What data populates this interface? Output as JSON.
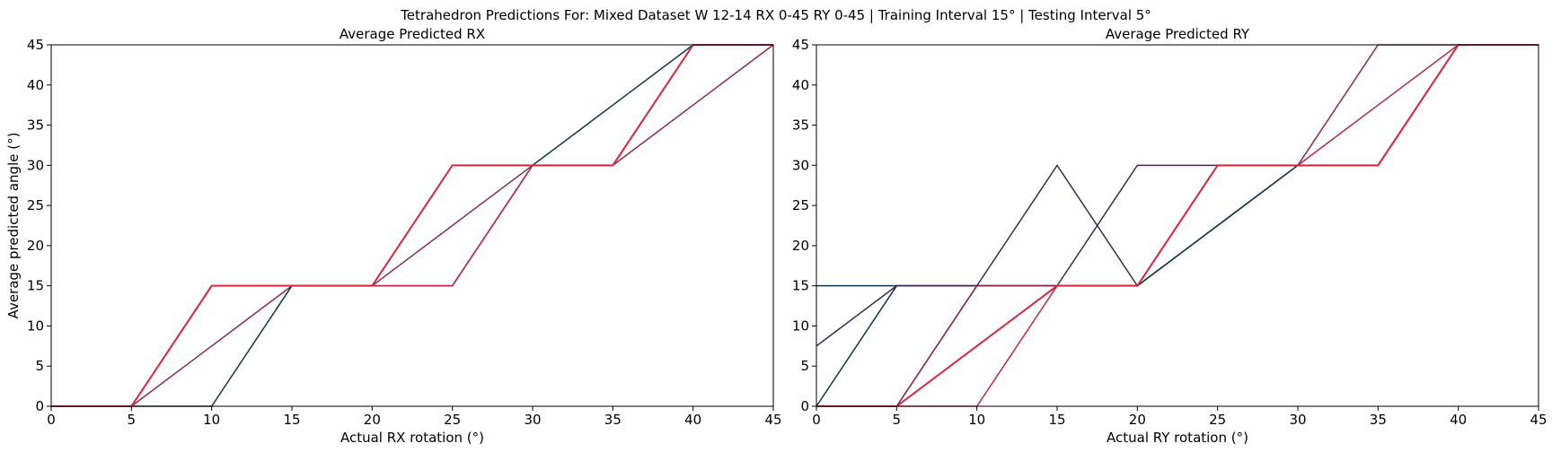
{
  "figure": {
    "suptitle": "Tetrahedron Predictions For: Mixed Dataset W 12-14 RX 0-45 RY 0-45 | Training Interval 15° | Testing Interval 5°"
  },
  "colors": {
    "navy": "#0c3350",
    "plum": "#3a2a4e",
    "wine": "#8b2a4e",
    "crimson": "#b8274a",
    "red": "#d8283f"
  },
  "chart_data": [
    {
      "type": "line",
      "title": "Average Predicted RX",
      "xlabel": "Actual RX rotation (°)",
      "ylabel": "Average predicted angle (°)",
      "xlim": [
        0,
        45
      ],
      "ylim": [
        0,
        45
      ],
      "xticks": [
        0,
        5,
        10,
        15,
        20,
        25,
        30,
        35,
        40,
        45
      ],
      "yticks": [
        0,
        5,
        10,
        15,
        20,
        25,
        30,
        35,
        40,
        45
      ],
      "grid": false,
      "series": [
        {
          "color": "#0c3350",
          "x": [
            0,
            5,
            10,
            15,
            20,
            25,
            30,
            35,
            40,
            45
          ],
          "y": [
            0,
            0,
            0,
            15,
            15,
            15,
            30,
            37.5,
            45,
            45
          ]
        },
        {
          "color": "#8b2a4e",
          "x": [
            0,
            5,
            10,
            15,
            20,
            25,
            30,
            35,
            40,
            45
          ],
          "y": [
            0,
            0,
            7.5,
            15,
            15,
            22.5,
            30,
            30,
            37.5,
            45
          ]
        },
        {
          "color": "#b8274a",
          "x": [
            0,
            5,
            10,
            15,
            20,
            25,
            30,
            35,
            40,
            45
          ],
          "y": [
            0,
            0,
            15,
            15,
            15,
            15,
            30,
            30,
            45,
            45
          ]
        },
        {
          "color": "#d8283f",
          "x": [
            0,
            5,
            10,
            15,
            20,
            25,
            30,
            35,
            40,
            45
          ],
          "y": [
            0,
            0,
            15,
            15,
            15,
            30,
            30,
            30,
            45,
            45
          ]
        }
      ]
    },
    {
      "type": "line",
      "title": "Average Predicted RY",
      "xlabel": "Actual RY rotation (°)",
      "ylabel": "",
      "xlim": [
        0,
        45
      ],
      "ylim": [
        0,
        45
      ],
      "xticks": [
        0,
        5,
        10,
        15,
        20,
        25,
        30,
        35,
        40,
        45
      ],
      "yticks": [
        0,
        5,
        10,
        15,
        20,
        25,
        30,
        35,
        40,
        45
      ],
      "grid": false,
      "series": [
        {
          "color": "#0c3350",
          "x": [
            0,
            5,
            10,
            15,
            20,
            25,
            30,
            35,
            40,
            45
          ],
          "y": [
            15,
            15,
            15,
            15,
            15,
            22.5,
            30,
            30,
            45,
            45
          ]
        },
        {
          "color": "#0c3350",
          "x": [
            0,
            5,
            10,
            15,
            20,
            25,
            30,
            35,
            40,
            45
          ],
          "y": [
            0,
            15,
            15,
            15,
            15,
            22.5,
            30,
            30,
            45,
            45
          ]
        },
        {
          "color": "#3a2a4e",
          "x": [
            0,
            5,
            10,
            15,
            20,
            25,
            30,
            35,
            40,
            45
          ],
          "y": [
            7.5,
            15,
            15,
            30,
            15,
            30,
            30,
            30,
            45,
            45
          ]
        },
        {
          "color": "#3a2a4e",
          "x": [
            0,
            5,
            10,
            15,
            20,
            25,
            30,
            35,
            40,
            45
          ],
          "y": [
            0,
            0,
            15,
            15,
            30,
            30,
            30,
            30,
            45,
            45
          ]
        },
        {
          "color": "#8b2a4e",
          "x": [
            0,
            5,
            10,
            15,
            20,
            25,
            30,
            35,
            40,
            45
          ],
          "y": [
            0,
            0,
            15,
            15,
            15,
            30,
            30,
            45,
            45,
            45
          ]
        },
        {
          "color": "#b8274a",
          "x": [
            0,
            5,
            10,
            15,
            20,
            25,
            30,
            35,
            40,
            45
          ],
          "y": [
            0,
            0,
            0,
            15,
            15,
            30,
            30,
            37.5,
            45,
            45
          ]
        },
        {
          "color": "#d8283f",
          "x": [
            0,
            5,
            10,
            15,
            20,
            25,
            30,
            35,
            40,
            45
          ],
          "y": [
            0,
            0,
            7.5,
            15,
            15,
            30,
            30,
            30,
            45,
            45
          ]
        }
      ]
    }
  ]
}
